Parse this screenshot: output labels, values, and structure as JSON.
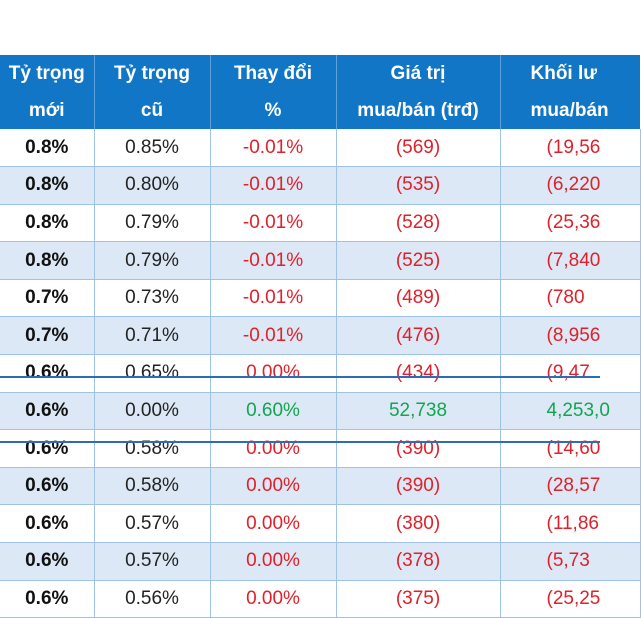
{
  "headers": {
    "col1": [
      "Tỷ trọng",
      "mới"
    ],
    "col2": [
      "Tỷ trọng",
      "cũ"
    ],
    "col3": [
      "Thay đổi",
      "%"
    ],
    "col4": [
      "Giá trị",
      "mua/bán (trđ)"
    ],
    "col5": [
      "Khối lư",
      "mua/bán"
    ]
  },
  "rows": [
    {
      "new": "0.8%",
      "old": "0.85%",
      "change": "-0.01%",
      "value": "(569)",
      "volume": "(19,56",
      "tone": "red"
    },
    {
      "new": "0.8%",
      "old": "0.80%",
      "change": "-0.01%",
      "value": "(535)",
      "volume": "(6,220",
      "tone": "red"
    },
    {
      "new": "0.8%",
      "old": "0.79%",
      "change": "-0.01%",
      "value": "(528)",
      "volume": "(25,36",
      "tone": "red"
    },
    {
      "new": "0.8%",
      "old": "0.79%",
      "change": "-0.01%",
      "value": "(525)",
      "volume": "(7,840",
      "tone": "red"
    },
    {
      "new": "0.7%",
      "old": "0.73%",
      "change": "-0.01%",
      "value": "(489)",
      "volume": "(780",
      "tone": "red"
    },
    {
      "new": "0.7%",
      "old": "0.71%",
      "change": "-0.01%",
      "value": "(476)",
      "volume": "(8,956",
      "tone": "red"
    },
    {
      "new": "0.6%",
      "old": "0.65%",
      "change": "0.00%",
      "value": "(434)",
      "volume": "(9,47",
      "tone": "red"
    },
    {
      "new": "0.6%",
      "old": "0.00%",
      "change": "0.60%",
      "value": "52,738",
      "volume": "4,253,0",
      "tone": "green"
    },
    {
      "new": "0.6%",
      "old": "0.58%",
      "change": "0.00%",
      "value": "(390)",
      "volume": "(14,60",
      "tone": "red"
    },
    {
      "new": "0.6%",
      "old": "0.58%",
      "change": "0.00%",
      "value": "(390)",
      "volume": "(28,57",
      "tone": "red"
    },
    {
      "new": "0.6%",
      "old": "0.57%",
      "change": "0.00%",
      "value": "(380)",
      "volume": "(11,86",
      "tone": "red"
    },
    {
      "new": "0.6%",
      "old": "0.57%",
      "change": "0.00%",
      "value": "(378)",
      "volume": "(5,73",
      "tone": "red"
    },
    {
      "new": "0.6%",
      "old": "0.56%",
      "change": "0.00%",
      "value": "(375)",
      "volume": "(25,25",
      "tone": "red"
    }
  ],
  "colors": {
    "header_bg": "#1276c7",
    "alt_row_bg": "#dce8f5",
    "negative": "#e0202a",
    "positive": "#12a54e",
    "highlight_line": "#2d6db8"
  }
}
